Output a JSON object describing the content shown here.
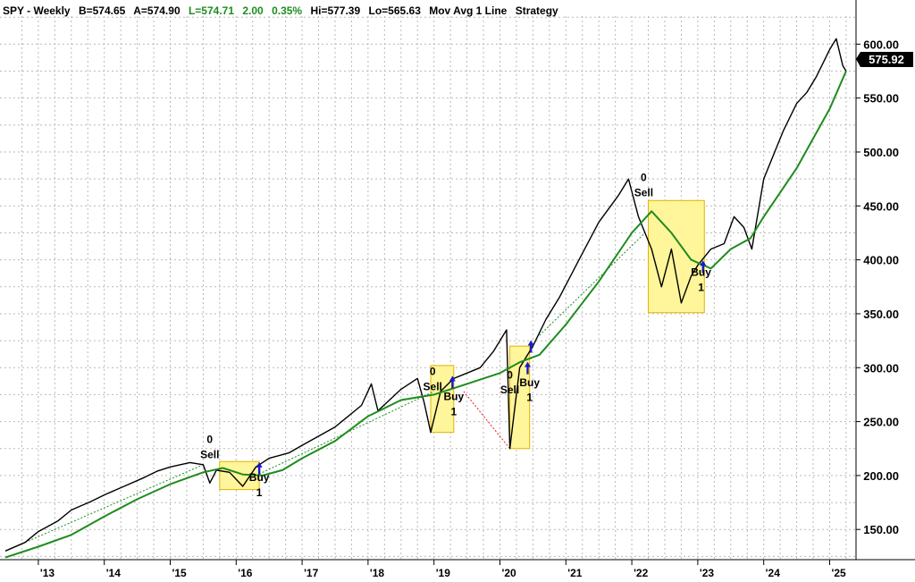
{
  "header": {
    "symbol": "SPY - Weekly",
    "bid": "B=574.65",
    "ask": "A=574.90",
    "last": "L=574.71",
    "change": "2.00",
    "change_pct": "0.35%",
    "high": "Hi=577.39",
    "low": "Lo=565.63",
    "study": "Mov Avg 1 Line",
    "strategy": "Strategy"
  },
  "colors": {
    "price": "#000000",
    "moving_average": "#1e8c1e",
    "positive_change": "#1e8c1e",
    "highlight_box": "#fff59a",
    "arrow": "#1a1acc"
  },
  "last_price_label": "575.92",
  "chart_data": {
    "type": "line",
    "title": "",
    "xlabel": "",
    "ylabel": "",
    "ylim": [
      122,
      626
    ],
    "xlim": [
      2012.5,
      2025.4
    ],
    "grid": true,
    "y_ticks": [
      "150.00",
      "200.00",
      "250.00",
      "300.00",
      "350.00",
      "400.00",
      "450.00",
      "500.00",
      "550.00",
      "600.00"
    ],
    "x_ticks": [
      "'13",
      "'14",
      "'15",
      "'16",
      "'17",
      "'18",
      "'19",
      "'20",
      "'21",
      "'22",
      "'23",
      "'24",
      "'25"
    ],
    "series": [
      {
        "values_note": "",
        "x": [
          2012.5,
          2012.8,
          2013.0,
          2013.3,
          2013.5,
          2013.8,
          2014.0,
          2014.3,
          2014.6,
          2014.8,
          2015.0,
          2015.3,
          2015.5,
          2015.6,
          2015.7,
          2015.9,
          2016.1,
          2016.3,
          2016.5,
          2016.8,
          2017.0,
          2017.5,
          2017.9,
          2018.05,
          2018.15,
          2018.5,
          2018.75,
          2018.85,
          2018.95,
          2019.1,
          2019.3,
          2019.5,
          2019.7,
          2019.9,
          2020.1,
          2020.15,
          2020.22,
          2020.3,
          2020.5,
          2020.7,
          2020.9,
          2021.2,
          2021.5,
          2021.8,
          2021.95,
          2022.1,
          2022.3,
          2022.45,
          2022.6,
          2022.75,
          2022.9,
          2023.0,
          2023.2,
          2023.4,
          2023.55,
          2023.7,
          2023.82,
          2024.0,
          2024.3,
          2024.5,
          2024.65,
          2024.8,
          2025.0,
          2025.1,
          2025.2,
          2025.25
        ],
        "values": [
          130,
          138,
          148,
          158,
          168,
          176,
          182,
          190,
          198,
          204,
          208,
          212,
          210,
          193,
          205,
          203,
          190,
          208,
          216,
          221,
          228,
          245,
          265,
          285,
          260,
          280,
          290,
          268,
          240,
          278,
          290,
          295,
          300,
          315,
          335,
          225,
          260,
          300,
          320,
          345,
          365,
          400,
          435,
          460,
          475,
          440,
          410,
          375,
          410,
          360,
          385,
          395,
          410,
          415,
          440,
          430,
          410,
          475,
          520,
          545,
          555,
          570,
          595,
          605,
          580,
          575
        ]
      },
      {
        "values_note": "",
        "x": [
          2012.5,
          2013.0,
          2013.5,
          2014.0,
          2014.5,
          2015.0,
          2015.5,
          2015.8,
          2016.1,
          2016.4,
          2016.7,
          2017.0,
          2017.5,
          2018.0,
          2018.5,
          2019.0,
          2019.5,
          2020.0,
          2020.3,
          2020.6,
          2021.0,
          2021.5,
          2022.0,
          2022.3,
          2022.6,
          2022.9,
          2023.2,
          2023.5,
          2023.8,
          2024.0,
          2024.5,
          2025.0,
          2025.25
        ],
        "values": [
          124,
          134,
          145,
          162,
          178,
          192,
          203,
          207,
          201,
          200,
          205,
          216,
          232,
          255,
          270,
          275,
          285,
          295,
          305,
          312,
          340,
          380,
          425,
          445,
          425,
          400,
          392,
          410,
          420,
          440,
          485,
          540,
          575
        ]
      }
    ],
    "annotations": [
      {
        "label": "0",
        "x": 2015.6,
        "y": 230
      },
      {
        "label": "Sell",
        "x": 2015.6,
        "y": 216
      },
      {
        "label": "Buy",
        "x": 2016.35,
        "y": 195
      },
      {
        "label": "1",
        "x": 2016.35,
        "y": 181
      },
      {
        "label": "0",
        "x": 2018.98,
        "y": 293
      },
      {
        "label": "Sell",
        "x": 2018.98,
        "y": 279
      },
      {
        "label": "Buy",
        "x": 2019.3,
        "y": 270
      },
      {
        "label": "1",
        "x": 2019.3,
        "y": 256
      },
      {
        "label": "0",
        "x": 2020.15,
        "y": 290
      },
      {
        "label": "Sell",
        "x": 2020.15,
        "y": 276
      },
      {
        "label": "Buy",
        "x": 2020.45,
        "y": 283
      },
      {
        "label": "1",
        "x": 2020.45,
        "y": 269
      },
      {
        "label": "0",
        "x": 2022.18,
        "y": 473
      },
      {
        "label": "Sell",
        "x": 2022.18,
        "y": 459
      },
      {
        "label": "Buy",
        "x": 2023.05,
        "y": 385
      },
      {
        "label": "1",
        "x": 2023.05,
        "y": 371
      }
    ],
    "highlight_boxes": [
      {
        "x0": 2015.75,
        "x1": 2016.35,
        "y0": 187,
        "y1": 213
      },
      {
        "x0": 2018.95,
        "x1": 2019.3,
        "y0": 240,
        "y1": 302
      },
      {
        "x0": 2020.15,
        "x1": 2020.45,
        "y0": 225,
        "y1": 320
      },
      {
        "x0": 2022.25,
        "x1": 2023.1,
        "y0": 351,
        "y1": 455
      }
    ],
    "signal_arrows": [
      {
        "x": 2016.35,
        "y": 205
      },
      {
        "x": 2019.28,
        "y": 285
      },
      {
        "x": 2020.42,
        "y": 298
      },
      {
        "x": 2020.47,
        "y": 318
      },
      {
        "x": 2023.08,
        "y": 392
      }
    ],
    "trade_lines": [
      {
        "x0": 2012.5,
        "y0": 130,
        "x1": 2015.5,
        "y1": 210,
        "color": "green"
      },
      {
        "x0": 2016.3,
        "y0": 200,
        "x1": 2019.0,
        "y1": 278,
        "color": "green"
      },
      {
        "x0": 2019.45,
        "y0": 278,
        "x1": 2020.15,
        "y1": 225,
        "color": "red"
      },
      {
        "x0": 2020.6,
        "y0": 330,
        "x1": 2022.2,
        "y1": 425,
        "color": "green"
      }
    ]
  }
}
